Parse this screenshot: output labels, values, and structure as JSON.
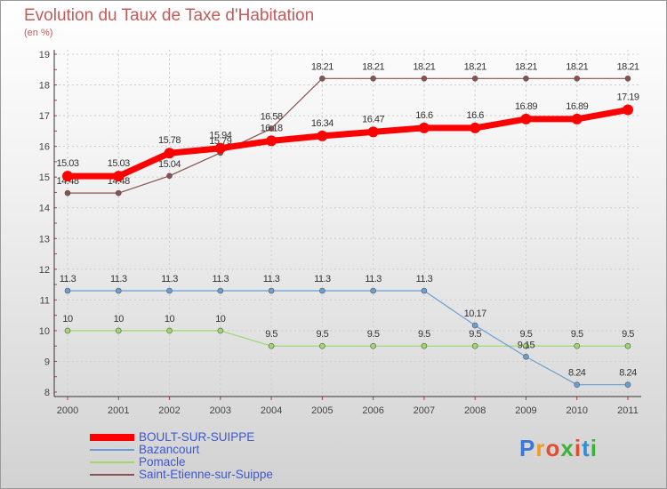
{
  "title": "Evolution du Taux de Taxe d'Habitation",
  "unit_label": "(en %)",
  "brand": {
    "letters": [
      "P",
      "r",
      "o",
      "x",
      "i",
      "t",
      "i"
    ],
    "colors": [
      "#3a78d8",
      "#f39a1f",
      "#e64b2e",
      "#3fb13a",
      "#e64b2e",
      "#2e8fd8",
      "#3fb13a"
    ]
  },
  "chart_data": {
    "type": "line",
    "title": "Evolution du Taux de Taxe d'Habitation",
    "ylabel": "(en %)",
    "xlabel": "",
    "categories": [
      "2000",
      "2001",
      "2002",
      "2003",
      "2004",
      "2005",
      "2006",
      "2007",
      "2008",
      "2009",
      "2010",
      "2011"
    ],
    "ylim": [
      8,
      19
    ],
    "yticks": [
      "8",
      "9",
      "10",
      "11",
      "12",
      "13",
      "14",
      "15",
      "16",
      "17",
      "18",
      "19"
    ],
    "grid": true,
    "series": [
      {
        "name": "BOULT-SUR-SUIPPE",
        "color": "#ff0000",
        "values": [
          15.03,
          15.03,
          15.78,
          15.94,
          16.18,
          16.34,
          16.47,
          16.6,
          16.6,
          16.89,
          16.89,
          17.19
        ],
        "labels": [
          "15.03",
          "15.03",
          "15.78",
          "15.94",
          "16.18",
          "16.34",
          "16.47",
          "16.6",
          "16.6",
          "16.89",
          "16.89",
          "17.19"
        ]
      },
      {
        "name": "Bazancourt",
        "color": "#6a9fd4",
        "values": [
          11.3,
          11.3,
          11.3,
          11.3,
          11.3,
          11.3,
          11.3,
          11.3,
          10.17,
          9.15,
          8.24,
          8.24
        ],
        "labels": [
          "11.3",
          "11.3",
          "11.3",
          "11.3",
          "11.3",
          "11.3",
          "11.3",
          "11.3",
          "10.17",
          "9.15",
          "8.24",
          "8.24"
        ]
      },
      {
        "name": "Pomacle",
        "color": "#9ed86b",
        "values": [
          10,
          10,
          10,
          10,
          9.5,
          9.5,
          9.5,
          9.5,
          9.5,
          9.5,
          9.5,
          9.5
        ],
        "labels": [
          "10",
          "10",
          "10",
          "10",
          "9.5",
          "9.5",
          "9.5",
          "9.5",
          "9.5",
          "9.5",
          "9.5",
          "9.5"
        ]
      },
      {
        "name": "Saint-Etienne-sur-Suippe",
        "color": "#8b5050",
        "values": [
          14.48,
          14.48,
          15.04,
          15.79,
          16.58,
          18.21,
          18.21,
          18.21,
          18.21,
          18.21,
          18.21,
          18.21
        ],
        "labels": [
          "14.48",
          "14.48",
          "15.04",
          "15.79",
          "16.58",
          "18.21",
          "18.21",
          "18.21",
          "18.21",
          "18.21",
          "18.21",
          "18.21"
        ]
      }
    ]
  }
}
